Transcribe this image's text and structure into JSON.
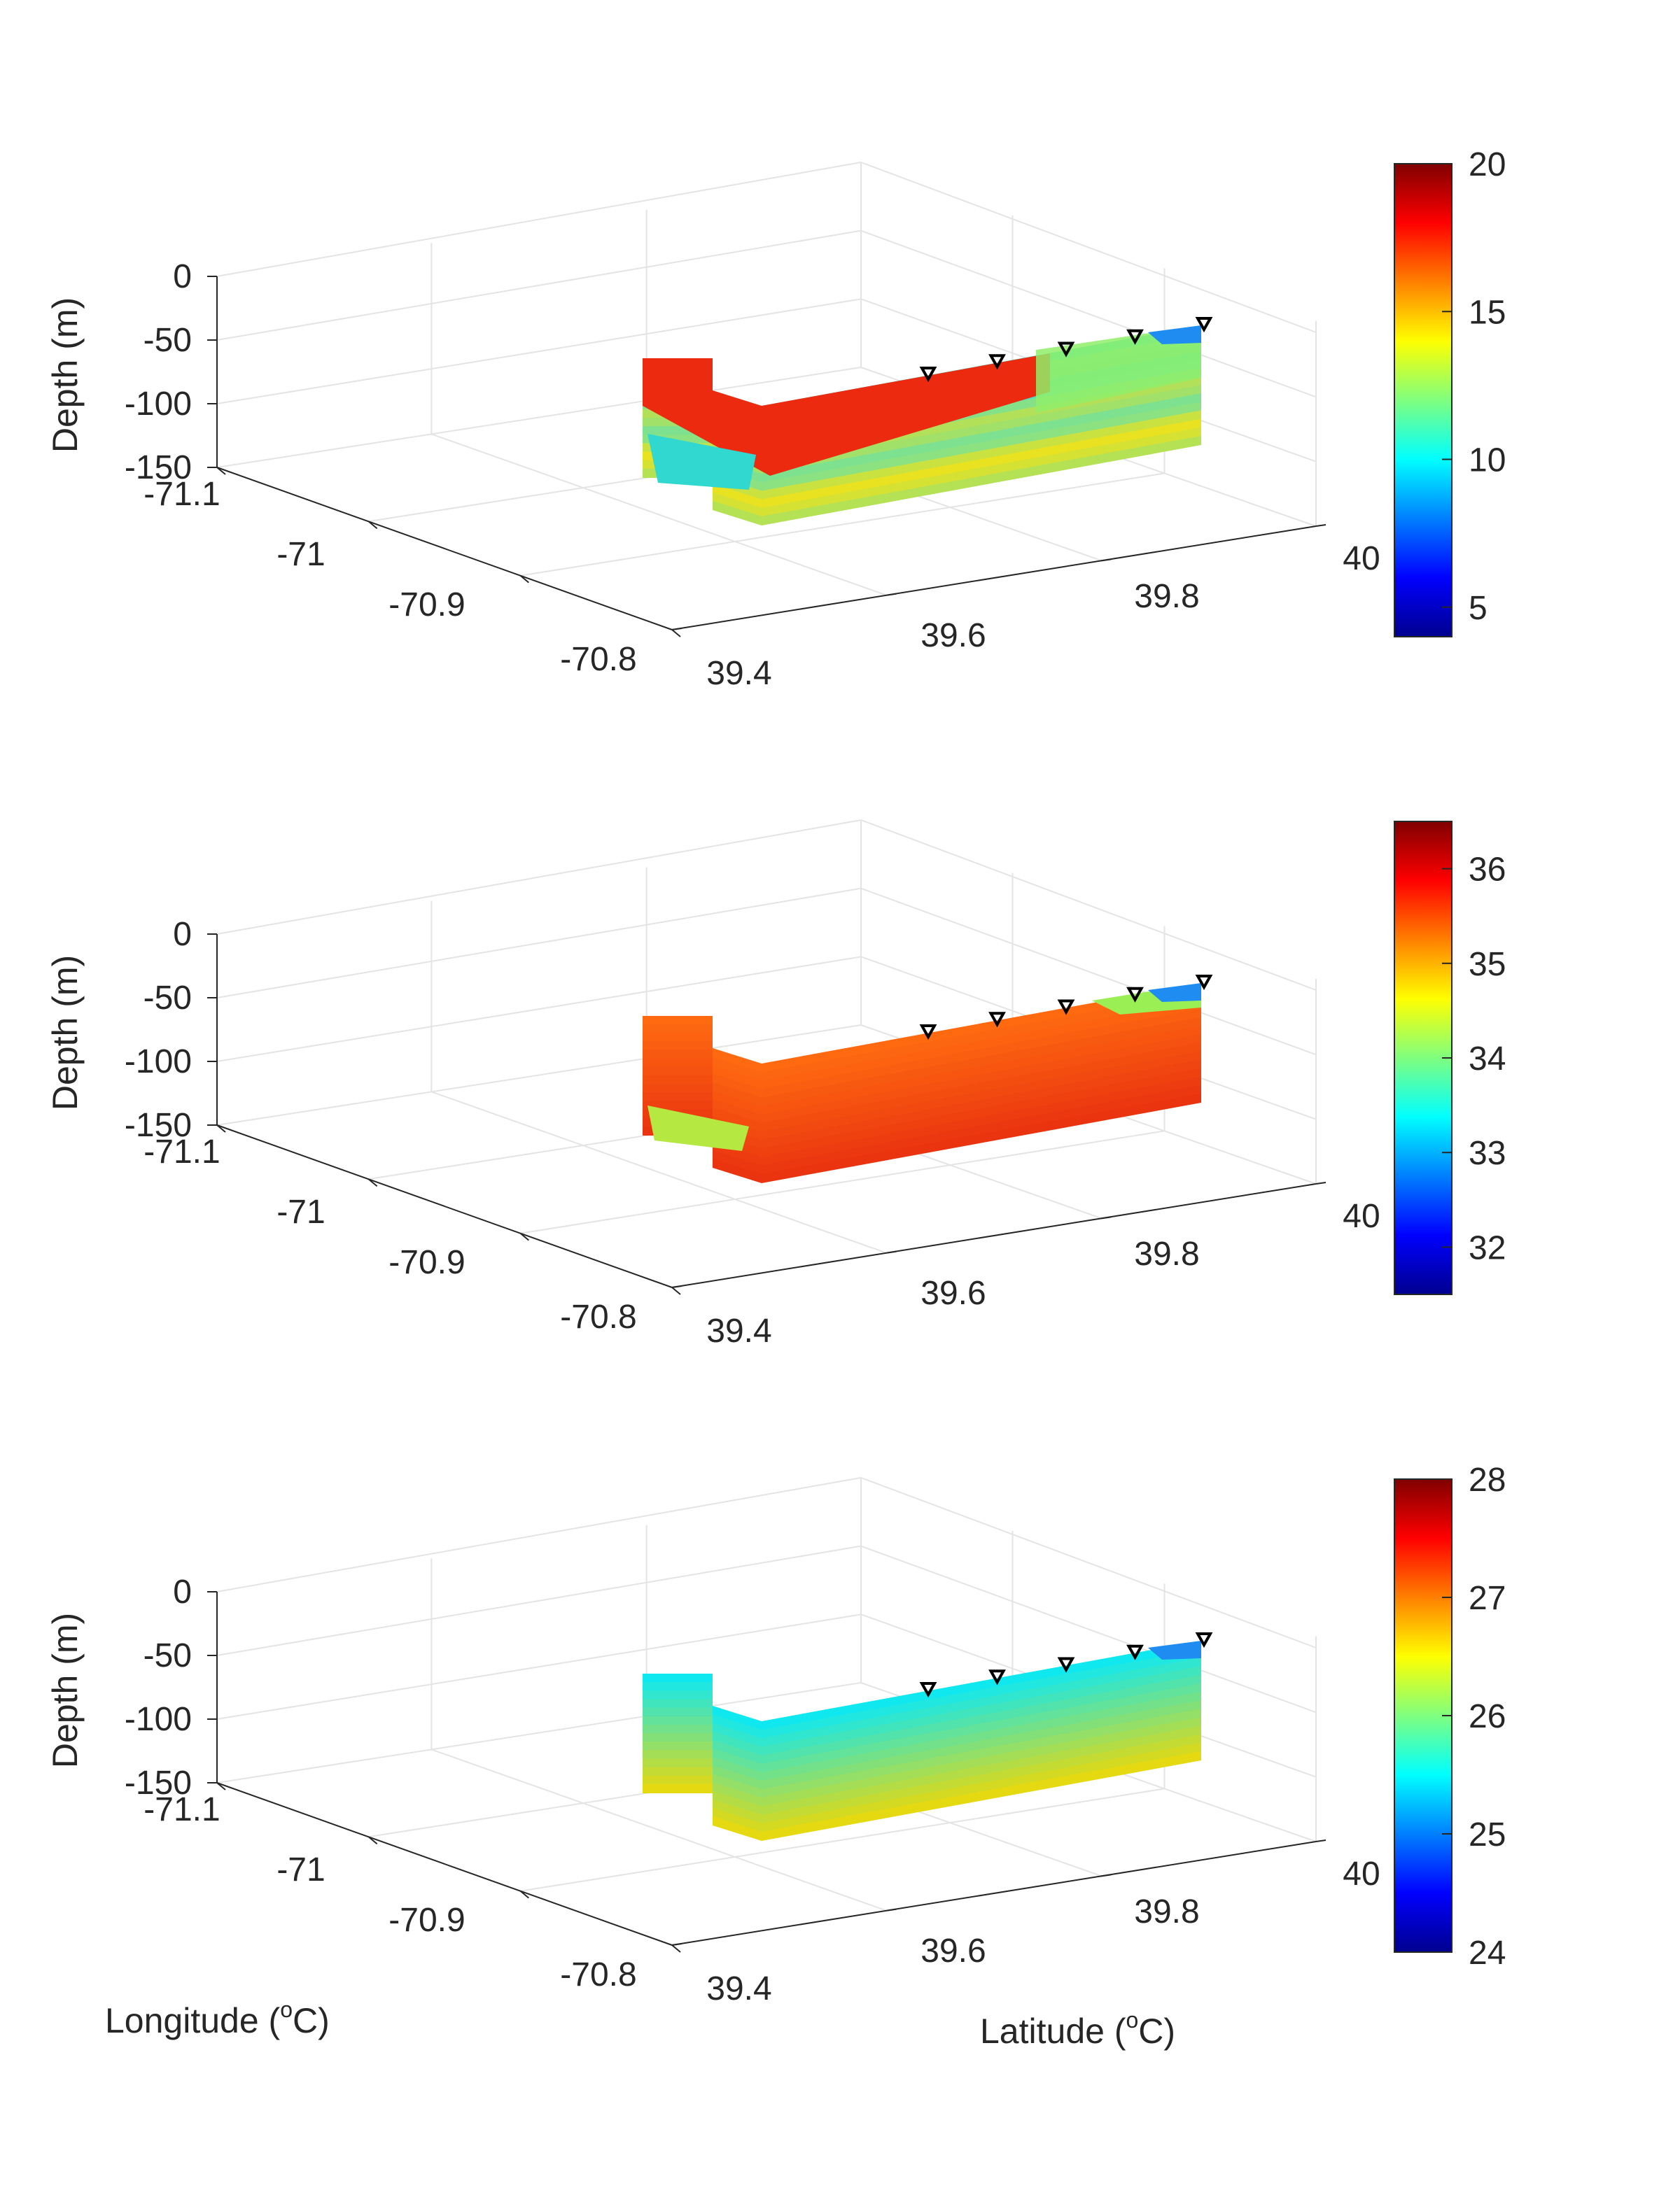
{
  "figure": {
    "xlabel": "Longitude",
    "ylabel": "Latitude",
    "unit_prefix": " (",
    "unit_sup": "o",
    "unit_main": "C)"
  },
  "chart_data": [
    {
      "type": "heatmap",
      "title": "",
      "zlabel": "Depth (m)",
      "depth_ticks": [
        "0",
        "-50",
        "-100",
        "-150"
      ],
      "lon_ticks": [
        "-71.1",
        "-71",
        "-70.9",
        "-70.8"
      ],
      "lat_ticks": [
        "39.4",
        "39.6",
        "39.8",
        "40"
      ],
      "depth_range": [
        -150,
        0
      ],
      "lon_range": [
        -71.1,
        -70.8
      ],
      "lat_range": [
        39.4,
        40.0
      ],
      "colormap": "jet",
      "colorbar_range": [
        4,
        20
      ],
      "colorbar_ticks": [
        "20",
        "15",
        "10",
        "5"
      ],
      "profile": {
        "shallow_color": "#40e0d0",
        "deep_color": "#e8e220",
        "field": "mixed"
      },
      "stations_lat": [
        39.72,
        39.79,
        39.86,
        39.93,
        40.0
      ],
      "grid": true
    },
    {
      "type": "heatmap",
      "title": "",
      "zlabel": "Depth (m)",
      "depth_ticks": [
        "0",
        "-50",
        "-100",
        "-150"
      ],
      "lon_ticks": [
        "-71.1",
        "-71",
        "-70.9",
        "-70.8"
      ],
      "lat_ticks": [
        "39.4",
        "39.6",
        "39.8",
        "40"
      ],
      "depth_range": [
        -150,
        0
      ],
      "lon_range": [
        -71.1,
        -70.8
      ],
      "lat_range": [
        39.4,
        40.0
      ],
      "colormap": "jet",
      "colorbar_range": [
        31.5,
        36.5
      ],
      "colorbar_ticks": [
        "36",
        "35",
        "34",
        "33",
        "32"
      ],
      "profile": {
        "shallow_color": "#ff6a10",
        "deep_color": "#e83010",
        "field": "salty"
      },
      "stations_lat": [
        39.72,
        39.79,
        39.86,
        39.93,
        40.0
      ],
      "grid": true
    },
    {
      "type": "heatmap",
      "title": "",
      "zlabel": "Depth (m)",
      "depth_ticks": [
        "0",
        "-50",
        "-100",
        "-150"
      ],
      "lon_ticks": [
        "-71.1",
        "-71",
        "-70.9",
        "-70.8"
      ],
      "lat_ticks": [
        "39.4",
        "39.6",
        "39.8",
        "40"
      ],
      "depth_range": [
        -150,
        0
      ],
      "lon_range": [
        -71.1,
        -70.8
      ],
      "lat_range": [
        39.4,
        40.0
      ],
      "colormap": "jet",
      "colorbar_range": [
        24,
        28
      ],
      "colorbar_ticks": [
        "28",
        "27",
        "26",
        "25",
        "24"
      ],
      "profile": {
        "shallow_color": "#10e8f0",
        "deep_color": "#f5d800",
        "field": "layered"
      },
      "stations_lat": [
        39.72,
        39.79,
        39.86,
        39.93,
        40.0
      ],
      "grid": true
    }
  ]
}
